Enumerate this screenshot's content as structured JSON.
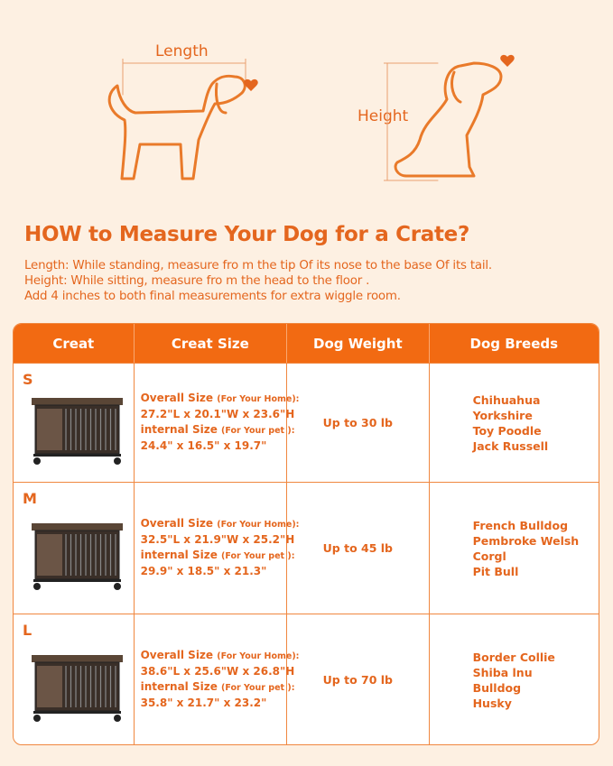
{
  "illustrations": {
    "length_label": "Length",
    "height_label": "Height"
  },
  "title": "HOW to Measure Your Dog for a Crate?",
  "instructions": [
    "Length: While standing, measure fro m the tip Of its nose to the base Of its tail.",
    "Height: While sitting, measure fro m the head to the floor .",
    "Add 4 inches to both final measurements for extra wiggle room."
  ],
  "colors": {
    "accent": "#e4661e",
    "header": "#f26a12",
    "background": "#fdf0e2"
  },
  "table": {
    "headers": [
      "Creat",
      "Creat Size",
      "Dog Weight",
      "Dog Breeds"
    ],
    "rows": [
      {
        "size": "S",
        "overall_label": "Overall Size",
        "overall_note": "(For Your Home):",
        "overall": "27.2\"L x 20.1\"W x 23.6\"H",
        "internal_label": "internal Size",
        "internal_note": "(For Your pet ):",
        "internal": "24.4\" x 16.5\" x 19.7\"",
        "weight": "Up to 30 lb",
        "breeds": [
          "Chihuahua",
          "Yorkshire",
          "Toy Poodle",
          "Jack Russell"
        ]
      },
      {
        "size": "M",
        "overall_label": "Overall Size",
        "overall_note": "(For Your Home):",
        "overall": "32.5\"L x 21.9\"W x 25.2\"H",
        "internal_label": "internal Size",
        "internal_note": "(For Your pet ):",
        "internal": "29.9\" x 18.5\" x 21.3\"",
        "weight": "Up to 45 lb",
        "breeds": [
          "French Bulldog",
          "Pembroke Welsh",
          "Corgl",
          "Pit Bull"
        ]
      },
      {
        "size": "L",
        "overall_label": "Overall Size",
        "overall_note": "(For Your Home):",
        "overall": "38.6\"L x 25.6\"W x 26.8\"H",
        "internal_label": "internal Size",
        "internal_note": "(For Your pet ):",
        "internal": "35.8\" x 21.7\" x 23.2\"",
        "weight": "Up to 70 lb",
        "breeds": [
          "Border Collie",
          "Shiba lnu",
          "Bulldog",
          "Husky"
        ]
      }
    ]
  }
}
